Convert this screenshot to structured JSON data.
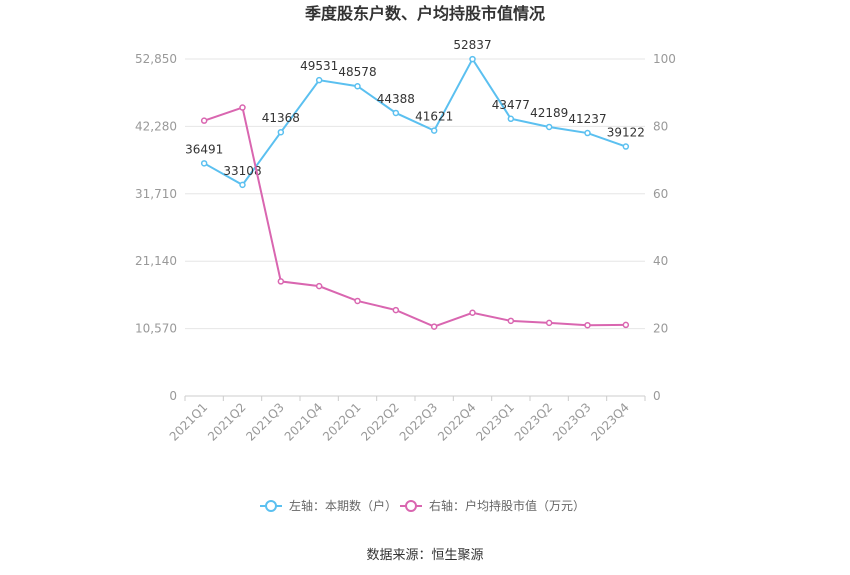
{
  "chart_data": {
    "type": "line",
    "title": "季度股东户数、户均持股市值情况",
    "categories": [
      "2021Q1",
      "2021Q2",
      "2021Q3",
      "2021Q4",
      "2022Q1",
      "2022Q2",
      "2022Q3",
      "2022Q4",
      "2023Q1",
      "2023Q2",
      "2023Q3",
      "2023Q4"
    ],
    "y_left": {
      "ticks": [
        "0",
        "10,570",
        "21,140",
        "31,710",
        "42,280",
        "52,850"
      ],
      "range": [
        0,
        52850
      ]
    },
    "y_right": {
      "ticks": [
        "0",
        "20",
        "40",
        "60",
        "80",
        "100"
      ],
      "range": [
        0,
        100
      ]
    },
    "series": [
      {
        "name": "左轴：本期数（户）",
        "axis": "left",
        "color": "#5bc0f0",
        "values": [
          36491,
          33108,
          41368,
          49531,
          48578,
          44388,
          41621,
          52837,
          43477,
          42189,
          41237,
          39122
        ],
        "labels": [
          "36491",
          "33108",
          "41368",
          "49531",
          "48578",
          "44388",
          "41621",
          "52837",
          "43477",
          "42189",
          "41237",
          "39122"
        ]
      },
      {
        "name": "右轴：户均持股市值（万元）",
        "axis": "right",
        "color": "#d966b0",
        "values": [
          81.7,
          85.6,
          34.0,
          32.6,
          28.2,
          25.5,
          20.6,
          24.7,
          22.3,
          21.7,
          21.0,
          21.1
        ]
      }
    ],
    "grid": true,
    "legend_position": "bottom"
  },
  "source_text": "数据来源：恒生聚源"
}
